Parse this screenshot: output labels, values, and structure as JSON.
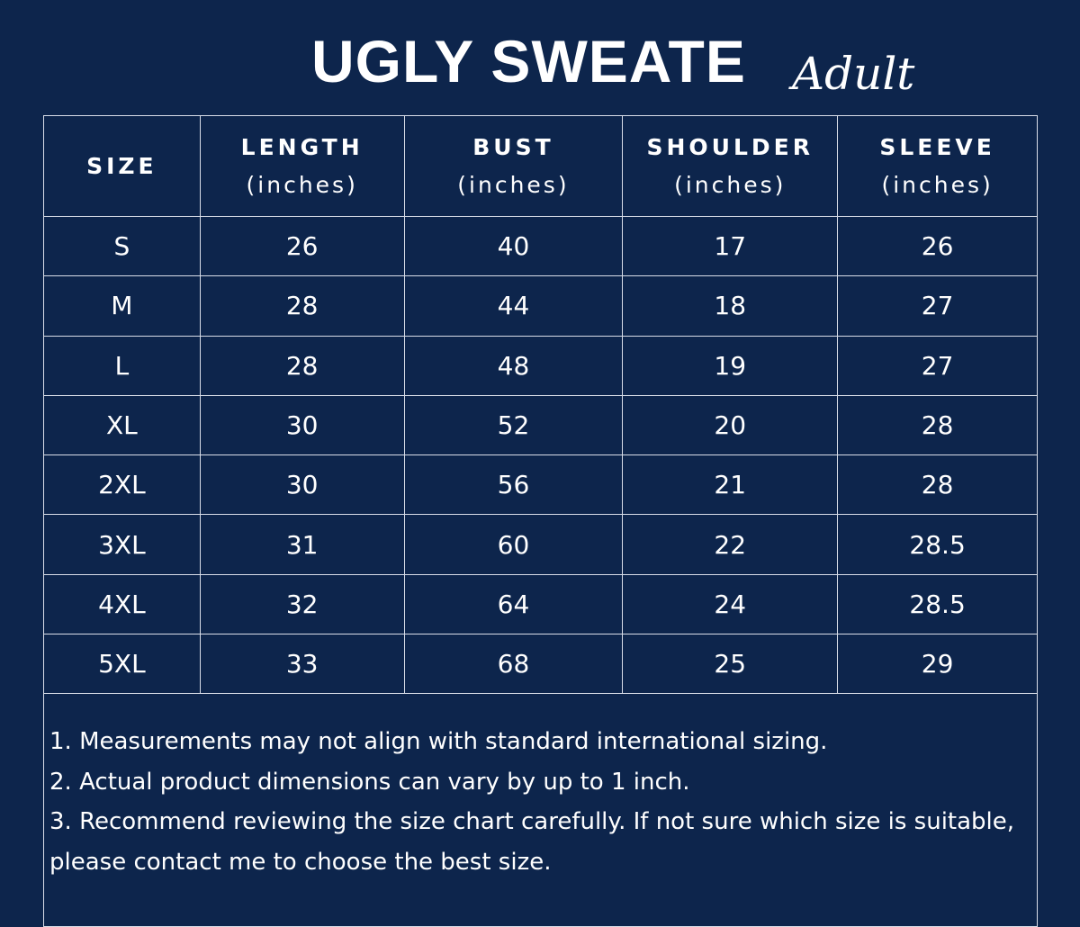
{
  "title": "UGLY SWEATE",
  "subtitle": "Adult",
  "table": {
    "headers": [
      {
        "label": "SIZE",
        "unit": ""
      },
      {
        "label": "LENGTH",
        "unit": "(inches)"
      },
      {
        "label": "BUST",
        "unit": "(inches)"
      },
      {
        "label": "SHOULDER",
        "unit": "(inches)"
      },
      {
        "label": "SLEEVE",
        "unit": "(inches)"
      }
    ],
    "rows": [
      [
        "S",
        "26",
        "40",
        "17",
        "26"
      ],
      [
        "M",
        "28",
        "44",
        "18",
        "27"
      ],
      [
        "L",
        "28",
        "48",
        "19",
        "27"
      ],
      [
        "XL",
        "30",
        "52",
        "20",
        "28"
      ],
      [
        "2XL",
        "30",
        "56",
        "21",
        "28"
      ],
      [
        "3XL",
        "31",
        "60",
        "22",
        "28.5"
      ],
      [
        "4XL",
        "32",
        "64",
        "24",
        "28.5"
      ],
      [
        "5XL",
        "33",
        "68",
        "25",
        "29"
      ]
    ]
  },
  "notes": [
    "1. Measurements may not align with standard international sizing.",
    "2. Actual product dimensions can vary by up to 1 inch.",
    "3. Recommend reviewing the size chart carefully. If not sure which size is suitable, please contact me to choose the best size."
  ],
  "colors": {
    "background": "#0d254c",
    "text": "#ffffff"
  }
}
